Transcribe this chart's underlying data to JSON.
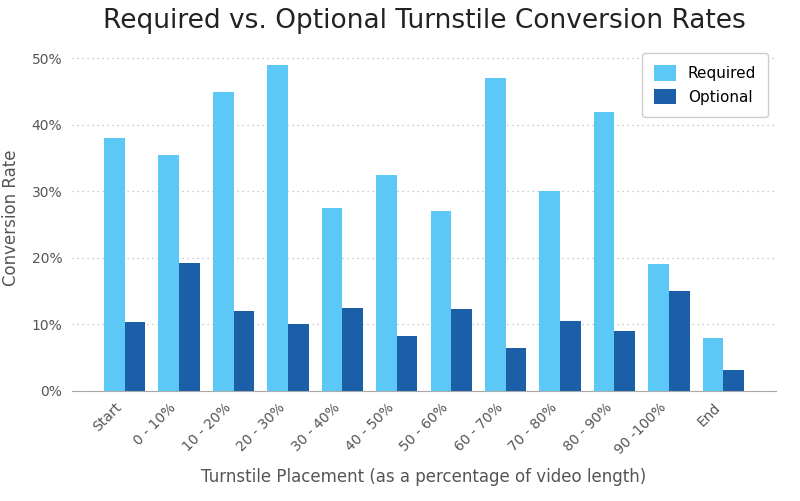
{
  "title": "Required vs. Optional Turnstile Conversion Rates",
  "xlabel": "Turnstile Placement (as a percentage of video length)",
  "ylabel": "Conversion Rate",
  "categories": [
    "Start",
    "0 - 10%",
    "10 - 20%",
    "20 - 30%",
    "30 - 40%",
    "40 - 50%",
    "50 - 60%",
    "60 - 70%",
    "70 - 80%",
    "80 - 90%",
    "90 -100%",
    "End"
  ],
  "required": [
    0.38,
    0.355,
    0.45,
    0.49,
    0.275,
    0.325,
    0.27,
    0.47,
    0.3,
    0.42,
    0.19,
    0.08
  ],
  "optional": [
    0.103,
    0.192,
    0.12,
    0.1,
    0.125,
    0.083,
    0.123,
    0.065,
    0.105,
    0.09,
    0.15,
    0.032
  ],
  "required_color": "#5BC8F5",
  "optional_color": "#1A5FA8",
  "background_color": "#FFFFFF",
  "grid_color": "#BBBBBB",
  "ylim": [
    0,
    0.52
  ],
  "yticks": [
    0,
    0.1,
    0.2,
    0.3,
    0.4,
    0.5
  ],
  "title_fontsize": 19,
  "label_fontsize": 12,
  "tick_fontsize": 10,
  "legend_labels": [
    "Required",
    "Optional"
  ]
}
